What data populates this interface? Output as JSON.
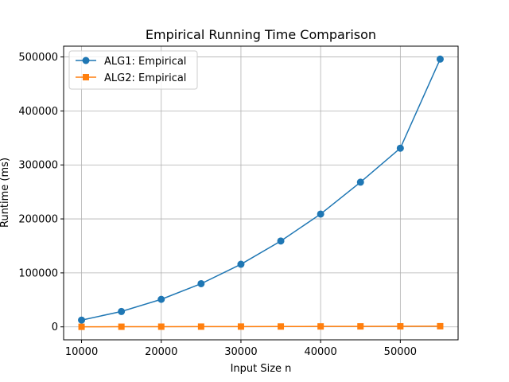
{
  "chart_data": {
    "type": "line",
    "title": "Empirical Running Time Comparison",
    "xlabel": "Input Size n",
    "ylabel": "Runtime (ms)",
    "x": [
      10000,
      15000,
      20000,
      25000,
      30000,
      35000,
      40000,
      45000,
      50000,
      55000
    ],
    "xlim": [
      7750,
      57250
    ],
    "ylim": [
      -24000,
      520000
    ],
    "xticks": [
      10000,
      20000,
      30000,
      40000,
      50000
    ],
    "yticks": [
      0,
      100000,
      200000,
      300000,
      400000,
      500000
    ],
    "grid": true,
    "legend_position": "top-left",
    "series": [
      {
        "name": "ALG1: Empirical",
        "color": "#1f77b4",
        "marker": "circle",
        "values": [
          12500,
          28500,
          51000,
          80000,
          116000,
          159000,
          209000,
          268000,
          331000,
          496000
        ]
      },
      {
        "name": "ALG2: Empirical",
        "color": "#ff7f0e",
        "marker": "square",
        "values": [
          150,
          250,
          350,
          450,
          550,
          650,
          800,
          900,
          1000,
          1200
        ]
      }
    ]
  }
}
